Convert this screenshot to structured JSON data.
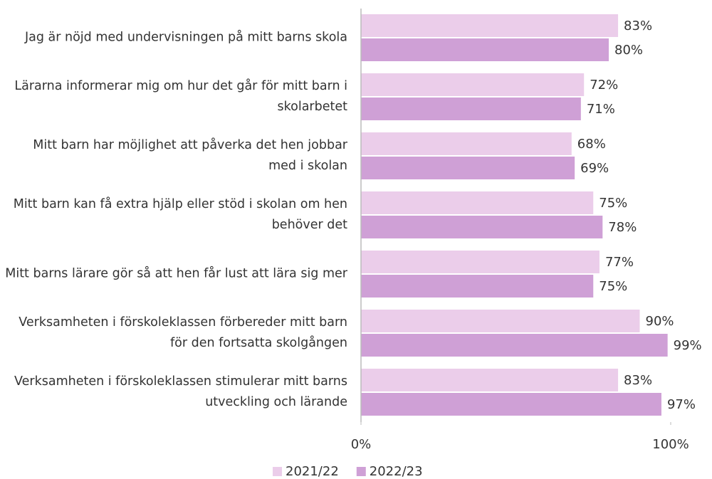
{
  "chart_data": {
    "type": "bar",
    "orientation": "horizontal",
    "categories": [
      "Jag är nöjd med undervisningen på mitt barns skola",
      "Lärarna informerar mig om hur det går för mitt barn i skolarbetet",
      "Mitt barn har möjlighet att påverka det hen jobbar med i skolan",
      "Mitt barn kan få extra hjälp eller stöd i skolan om hen behöver det",
      "Mitt barns lärare gör så att hen får lust att lära sig mer",
      "Verksamheten i förskoleklassen förbereder mitt barn för den fortsatta skolgången",
      "Verksamheten i förskoleklassen stimulerar mitt barns utveckling och lärande"
    ],
    "series": [
      {
        "name": "2021/22",
        "color": "#ebcdea",
        "values": [
          83,
          72,
          68,
          75,
          77,
          90,
          83
        ],
        "value_labels": [
          "83%",
          "72%",
          "68%",
          "75%",
          "77%",
          "90%",
          "83%"
        ]
      },
      {
        "name": "2022/23",
        "color": "#cfa0d6",
        "values": [
          80,
          71,
          69,
          78,
          75,
          99,
          97
        ],
        "value_labels": [
          "80%",
          "71%",
          "69%",
          "78%",
          "75%",
          "99%",
          "97%"
        ]
      }
    ],
    "xlim": [
      0,
      100
    ],
    "xticks": [
      {
        "value": 0,
        "label": "0%"
      },
      {
        "value": 100,
        "label": "100%"
      }
    ],
    "legend": "bottom"
  }
}
